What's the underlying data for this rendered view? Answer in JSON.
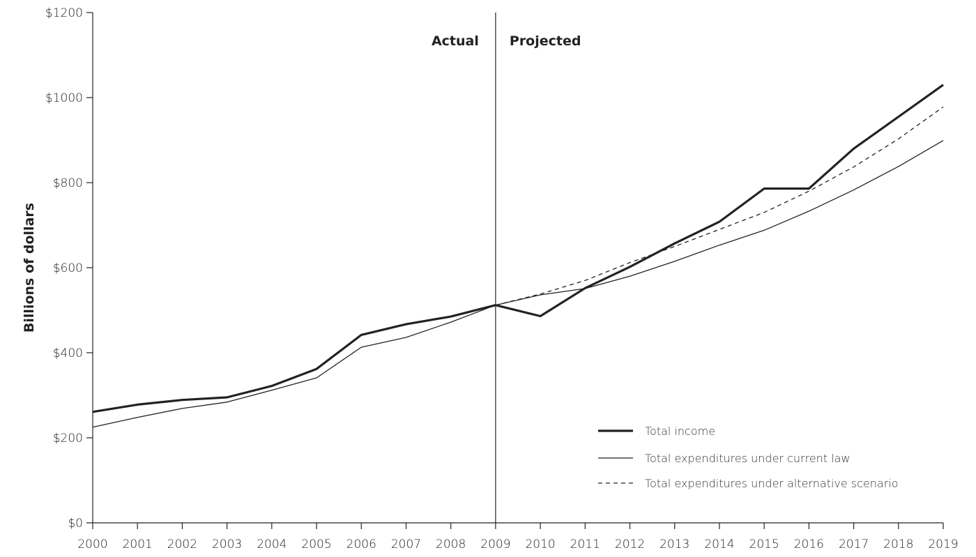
{
  "chart_data": {
    "type": "line",
    "ylabel": "Billions of dollars",
    "ylim": [
      0,
      1200
    ],
    "yticks": [
      0,
      200,
      400,
      600,
      800,
      1000,
      1200
    ],
    "ytick_labels": [
      "$0",
      "$200",
      "$400",
      "$600",
      "$800",
      "$1000",
      "$1200"
    ],
    "x": [
      2000,
      2001,
      2002,
      2003,
      2004,
      2005,
      2006,
      2007,
      2008,
      2009,
      2010,
      2011,
      2012,
      2013,
      2014,
      2015,
      2016,
      2017,
      2018,
      2019
    ],
    "x_labels": [
      "2000",
      "2001",
      "2002",
      "2003",
      "2004",
      "2005",
      "2006",
      "2007",
      "2008",
      "2009",
      "2010",
      "2011",
      "2012",
      "2013",
      "2014",
      "2015",
      "2016",
      "2017",
      "2018",
      "2019"
    ],
    "divider_x": 2009,
    "region_labels": {
      "left": "Actual",
      "right": "Projected"
    },
    "grid": false,
    "legend_position": "bottom-right",
    "series": [
      {
        "name": "Total income",
        "style": "thick-solid",
        "color": "#222222",
        "values": [
          261,
          278,
          289,
          295,
          322,
          362,
          442,
          467,
          485,
          512,
          486,
          552,
          602,
          657,
          708,
          786,
          786,
          880,
          955,
          1030
        ]
      },
      {
        "name": "Total expenditures under current law",
        "style": "thin-solid",
        "color": "#222222",
        "values": [
          225,
          248,
          269,
          284,
          312,
          341,
          413,
          436,
          472,
          512,
          536,
          551,
          580,
          615,
          653,
          688,
          733,
          783,
          838,
          899
        ]
      },
      {
        "name": "Total expenditures under alternative scenario",
        "style": "dashed",
        "color": "#222222",
        "values": [
          null,
          null,
          null,
          null,
          null,
          null,
          null,
          null,
          null,
          512,
          538,
          570,
          612,
          650,
          690,
          730,
          780,
          837,
          903,
          978
        ]
      }
    ]
  }
}
